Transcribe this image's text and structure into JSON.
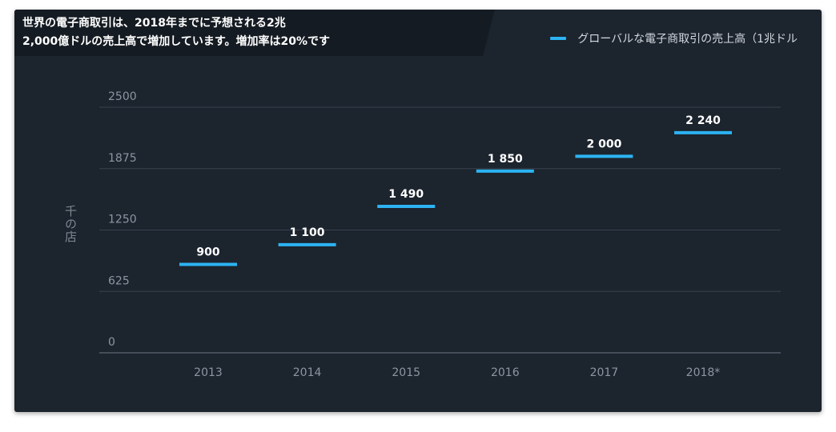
{
  "title": {
    "line1": "世界の電子商取引は、2018年までに予想される2兆",
    "line2": "2,000億ドルの売上高で増加しています。増加率は20%です"
  },
  "colors": {
    "accent": "#2cb3f2",
    "background": "#1c242e",
    "grid": "#3a434d",
    "text": "#ffffff",
    "muted": "#8c96a1"
  },
  "chart_data": {
    "type": "line",
    "title": "世界の電子商取引は、2018年までに予想される2兆2,000億ドルの売上高で増加しています。増加率は20%です",
    "categories": [
      "2013",
      "2014",
      "2015",
      "2016",
      "2017",
      "2018*"
    ],
    "series": [
      {
        "name": "グローバルな電子商取引の売上高（1兆ドル",
        "values": [
          900,
          1100,
          1490,
          1850,
          2000,
          2240
        ],
        "labels": [
          "900",
          "1 100",
          "1 490",
          "1 850",
          "2 000",
          "2 240"
        ]
      }
    ],
    "ylabel": "千の店",
    "xlabel": "",
    "ylim": [
      0,
      2500
    ],
    "yticks": [
      "0",
      "625",
      "1250",
      "1875",
      "2500"
    ],
    "grid": true,
    "legend": "top-right"
  }
}
